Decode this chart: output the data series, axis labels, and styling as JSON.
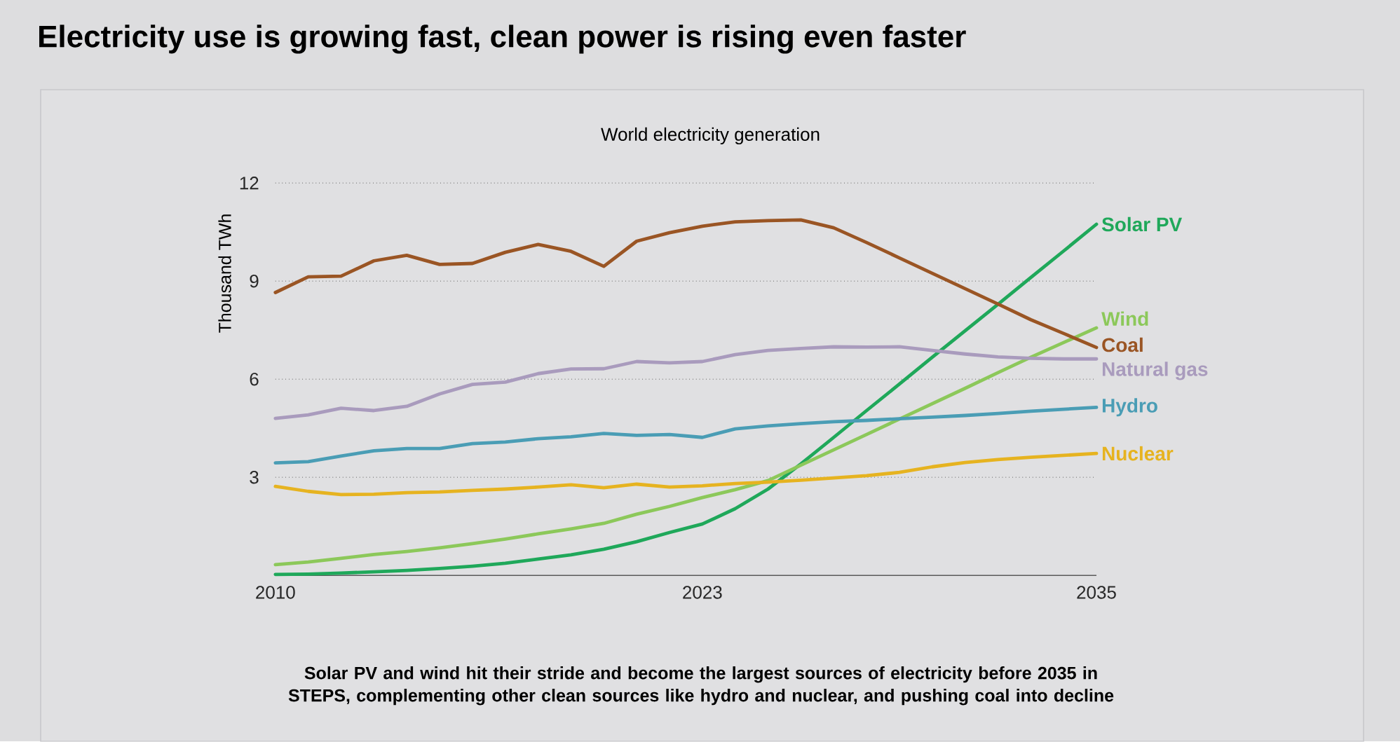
{
  "chart_data": {
    "type": "line",
    "title": "Electricity use is growing fast, clean power is rising even faster",
    "subtitle": "World electricity generation",
    "ylabel": "Thousand TWh",
    "x": [
      2010,
      2011,
      2012,
      2013,
      2014,
      2015,
      2016,
      2017,
      2018,
      2019,
      2020,
      2021,
      2022,
      2023,
      2024,
      2025,
      2026,
      2027,
      2028,
      2029,
      2030,
      2031,
      2032,
      2033,
      2034,
      2035
    ],
    "xlim": [
      2010,
      2035
    ],
    "xticks": [
      2010,
      2023,
      2035
    ],
    "ylim": [
      0,
      12
    ],
    "yticks": [
      3,
      6,
      9,
      12
    ],
    "grid": "y",
    "legend": false,
    "marker": "none",
    "line_style": "solid",
    "series": [
      {
        "name": "Solar PV",
        "color": "#1fa85a",
        "values": [
          0.03,
          0.04,
          0.07,
          0.11,
          0.15,
          0.21,
          0.28,
          0.37,
          0.5,
          0.63,
          0.8,
          1.03,
          1.31,
          1.57,
          2.04,
          2.64,
          3.41,
          4.22,
          5.04,
          5.85,
          6.67,
          7.48,
          8.29,
          9.11,
          9.92,
          10.74
        ]
      },
      {
        "name": "Wind",
        "color": "#8cc85a",
        "values": [
          0.33,
          0.41,
          0.52,
          0.64,
          0.73,
          0.84,
          0.97,
          1.11,
          1.27,
          1.42,
          1.59,
          1.87,
          2.11,
          2.38,
          2.62,
          2.9,
          3.37,
          3.84,
          4.31,
          4.78,
          5.25,
          5.72,
          6.2,
          6.67,
          7.12,
          7.57
        ]
      },
      {
        "name": "Coal",
        "color": "#9a5524",
        "values": [
          8.65,
          9.13,
          9.15,
          9.62,
          9.79,
          9.51,
          9.54,
          9.88,
          10.12,
          9.91,
          9.45,
          10.22,
          10.48,
          10.68,
          10.81,
          10.85,
          10.87,
          10.63,
          10.18,
          9.71,
          9.24,
          8.77,
          8.3,
          7.82,
          7.4,
          6.97
        ]
      },
      {
        "name": "Natural gas",
        "color": "#a99bbd",
        "values": [
          4.8,
          4.91,
          5.11,
          5.04,
          5.17,
          5.55,
          5.84,
          5.91,
          6.17,
          6.31,
          6.32,
          6.54,
          6.5,
          6.54,
          6.75,
          6.88,
          6.94,
          6.99,
          6.98,
          6.99,
          6.88,
          6.77,
          6.68,
          6.64,
          6.62,
          6.62
        ]
      },
      {
        "name": "Hydro",
        "color": "#4a9db5",
        "values": [
          3.44,
          3.48,
          3.65,
          3.81,
          3.88,
          3.88,
          4.03,
          4.08,
          4.18,
          4.24,
          4.34,
          4.28,
          4.31,
          4.22,
          4.48,
          4.57,
          4.64,
          4.7,
          4.74,
          4.79,
          4.84,
          4.89,
          4.95,
          5.02,
          5.08,
          5.14
        ]
      },
      {
        "name": "Nuclear",
        "color": "#e6b320",
        "values": [
          2.72,
          2.57,
          2.47,
          2.48,
          2.53,
          2.55,
          2.6,
          2.64,
          2.7,
          2.77,
          2.68,
          2.79,
          2.7,
          2.74,
          2.81,
          2.85,
          2.91,
          2.98,
          3.05,
          3.15,
          3.32,
          3.45,
          3.54,
          3.61,
          3.67,
          3.73
        ]
      }
    ],
    "annotations": [
      "**Solar PV and wind hit their stride and become the largest sources of electricity before 2035 in STEPS, complementing other clean sources like hydro and nuclear, and pushing coal into decline**"
    ]
  }
}
